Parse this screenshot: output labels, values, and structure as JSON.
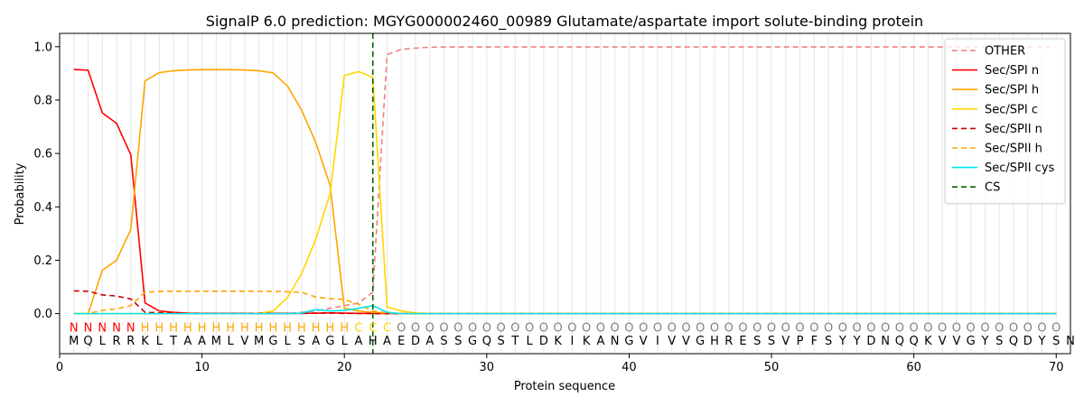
{
  "chart_data": {
    "type": "line",
    "title": "SignalP 6.0 prediction: MGYG000002460_00989 Glutamate/aspartate import solute-binding protein",
    "xlabel": "Protein sequence",
    "ylabel": "Probability",
    "xlim": [
      0,
      71
    ],
    "ylim": [
      -0.15,
      1.05
    ],
    "xticks": [
      0,
      10,
      20,
      30,
      40,
      50,
      60,
      70
    ],
    "yticks": [
      0.0,
      0.2,
      0.4,
      0.6,
      0.8,
      1.0
    ],
    "legend_position": "top-right",
    "sequence": "MQLRRKLTAAMLVMGLSAGLAHAEDASSGQSTLDKIKANGVIVVGHRESSVPFSYYDNQQKVVGYSQDYSN",
    "regions": "NNNNNHHHHHHHHHHHHHHHCCCOOOOOOOOOOOOOOOOOOOOOOOOOOOOOOOOOOOOOOOOOOOOOOO",
    "region_colors": {
      "N": "#ff0000",
      "H": "#ffa500",
      "C": "#ffd700",
      "O": "#808080"
    },
    "cleavage_site": 22,
    "series": [
      {
        "name": "OTHER",
        "color": "#f08080",
        "dash": "6,4",
        "values": [
          0.0,
          0.0,
          0.0,
          0.0,
          0.0,
          0.0,
          0.0,
          0.0,
          0.0,
          0.0,
          0.0,
          0.0,
          0.0,
          0.0,
          0.0,
          0.0,
          0.005,
          0.01,
          0.02,
          0.03,
          0.04,
          0.08,
          0.97,
          0.99,
          0.995,
          0.998,
          0.999,
          0.999,
          0.999,
          0.999,
          0.999,
          0.999,
          0.999,
          0.999,
          0.999,
          0.999,
          0.999,
          0.999,
          0.999,
          0.999,
          0.999,
          0.999,
          0.999,
          0.999,
          0.999,
          0.999,
          0.999,
          0.999,
          0.999,
          0.999,
          0.999,
          0.999,
          0.999,
          0.999,
          0.999,
          0.999,
          0.999,
          0.999,
          0.999,
          0.999,
          0.999,
          0.999,
          0.999,
          0.999,
          0.999,
          0.999,
          0.999,
          0.999,
          0.999,
          0.999
        ]
      },
      {
        "name": "Sec/SPI n",
        "color": "#ff0000",
        "dash": "",
        "values": [
          0.915,
          0.912,
          0.752,
          0.713,
          0.595,
          0.04,
          0.01,
          0.005,
          0.002,
          0.001,
          0.001,
          0.001,
          0.001,
          0.001,
          0.001,
          0.001,
          0.001,
          0.002,
          0.003,
          0.002,
          0.001,
          0.001,
          0.0,
          0.0,
          0.0,
          0.0,
          0.0,
          0.0,
          0.0,
          0.0,
          0.0,
          0.0,
          0.0,
          0.0,
          0.0,
          0.0,
          0.0,
          0.0,
          0.0,
          0.0,
          0.0,
          0.0,
          0.0,
          0.0,
          0.0,
          0.0,
          0.0,
          0.0,
          0.0,
          0.0,
          0.0,
          0.0,
          0.0,
          0.0,
          0.0,
          0.0,
          0.0,
          0.0,
          0.0,
          0.0,
          0.0,
          0.0,
          0.0,
          0.0,
          0.0,
          0.0,
          0.0,
          0.0,
          0.0,
          0.0
        ]
      },
      {
        "name": "Sec/SPI h",
        "color": "#ffa500",
        "dash": "",
        "values": [
          0.0,
          0.0,
          0.162,
          0.2,
          0.315,
          0.872,
          0.903,
          0.91,
          0.913,
          0.914,
          0.914,
          0.914,
          0.913,
          0.91,
          0.902,
          0.853,
          0.762,
          0.64,
          0.48,
          0.02,
          0.01,
          0.005,
          0.002,
          0.0,
          0.0,
          0.0,
          0.0,
          0.0,
          0.0,
          0.0,
          0.0,
          0.0,
          0.0,
          0.0,
          0.0,
          0.0,
          0.0,
          0.0,
          0.0,
          0.0,
          0.0,
          0.0,
          0.0,
          0.0,
          0.0,
          0.0,
          0.0,
          0.0,
          0.0,
          0.0,
          0.0,
          0.0,
          0.0,
          0.0,
          0.0,
          0.0,
          0.0,
          0.0,
          0.0,
          0.0,
          0.0,
          0.0,
          0.0,
          0.0,
          0.0,
          0.0,
          0.0,
          0.0,
          0.0,
          0.0
        ]
      },
      {
        "name": "Sec/SPI c",
        "color": "#ffd700",
        "dash": "",
        "values": [
          0.0,
          0.0,
          0.0,
          0.0,
          0.0,
          0.0,
          0.0,
          0.0,
          0.0,
          0.0,
          0.0,
          0.0,
          0.0,
          0.001,
          0.01,
          0.06,
          0.15,
          0.28,
          0.45,
          0.892,
          0.907,
          0.885,
          0.025,
          0.01,
          0.003,
          0.0,
          0.0,
          0.0,
          0.0,
          0.0,
          0.0,
          0.0,
          0.0,
          0.0,
          0.0,
          0.0,
          0.0,
          0.0,
          0.0,
          0.0,
          0.0,
          0.0,
          0.0,
          0.0,
          0.0,
          0.0,
          0.0,
          0.0,
          0.0,
          0.0,
          0.0,
          0.0,
          0.0,
          0.0,
          0.0,
          0.0,
          0.0,
          0.0,
          0.0,
          0.0,
          0.0,
          0.0,
          0.0,
          0.0,
          0.0,
          0.0,
          0.0,
          0.0,
          0.0,
          0.0
        ]
      },
      {
        "name": "Sec/SPII n",
        "color": "#cc0000",
        "dash": "6,4",
        "values": [
          0.085,
          0.084,
          0.07,
          0.066,
          0.055,
          0.005,
          0.003,
          0.002,
          0.001,
          0.001,
          0.001,
          0.001,
          0.001,
          0.001,
          0.001,
          0.001,
          0.001,
          0.002,
          0.002,
          0.001,
          0.001,
          0.0,
          0.0,
          0.0,
          0.0,
          0.0,
          0.0,
          0.0,
          0.0,
          0.0,
          0.0,
          0.0,
          0.0,
          0.0,
          0.0,
          0.0,
          0.0,
          0.0,
          0.0,
          0.0,
          0.0,
          0.0,
          0.0,
          0.0,
          0.0,
          0.0,
          0.0,
          0.0,
          0.0,
          0.0,
          0.0,
          0.0,
          0.0,
          0.0,
          0.0,
          0.0,
          0.0,
          0.0,
          0.0,
          0.0,
          0.0,
          0.0,
          0.0,
          0.0,
          0.0,
          0.0,
          0.0,
          0.0,
          0.0,
          0.0
        ]
      },
      {
        "name": "Sec/SPII h",
        "color": "#ffa500",
        "dash": "6,4",
        "values": [
          0.0,
          0.0,
          0.012,
          0.018,
          0.03,
          0.08,
          0.083,
          0.084,
          0.084,
          0.084,
          0.084,
          0.084,
          0.084,
          0.084,
          0.083,
          0.082,
          0.08,
          0.062,
          0.056,
          0.053,
          0.035,
          0.01,
          0.002,
          0.0,
          0.0,
          0.0,
          0.0,
          0.0,
          0.0,
          0.0,
          0.0,
          0.0,
          0.0,
          0.0,
          0.0,
          0.0,
          0.0,
          0.0,
          0.0,
          0.0,
          0.0,
          0.0,
          0.0,
          0.0,
          0.0,
          0.0,
          0.0,
          0.0,
          0.0,
          0.0,
          0.0,
          0.0,
          0.0,
          0.0,
          0.0,
          0.0,
          0.0,
          0.0,
          0.0,
          0.0,
          0.0,
          0.0,
          0.0,
          0.0,
          0.0,
          0.0,
          0.0,
          0.0,
          0.0,
          0.0
        ]
      },
      {
        "name": "Sec/SPII cys",
        "color": "#00e5ee",
        "dash": "",
        "values": [
          0.0,
          0.0,
          0.0,
          0.0,
          0.0,
          0.0,
          0.0,
          0.0,
          0.0,
          0.0,
          0.0,
          0.0,
          0.0,
          0.0,
          0.0,
          0.0,
          0.002,
          0.015,
          0.01,
          0.012,
          0.02,
          0.03,
          0.005,
          0.0,
          0.0,
          0.0,
          0.0,
          0.0,
          0.0,
          0.0,
          0.0,
          0.0,
          0.0,
          0.0,
          0.0,
          0.0,
          0.0,
          0.0,
          0.0,
          0.0,
          0.0,
          0.0,
          0.0,
          0.0,
          0.0,
          0.0,
          0.0,
          0.0,
          0.0,
          0.0,
          0.0,
          0.0,
          0.0,
          0.0,
          0.0,
          0.0,
          0.0,
          0.0,
          0.0,
          0.0,
          0.0,
          0.0,
          0.0,
          0.0,
          0.0,
          0.0,
          0.0,
          0.0,
          0.0,
          0.0
        ]
      }
    ],
    "cs_legend": {
      "name": "CS",
      "color": "#006400",
      "dash": "6,4"
    }
  }
}
